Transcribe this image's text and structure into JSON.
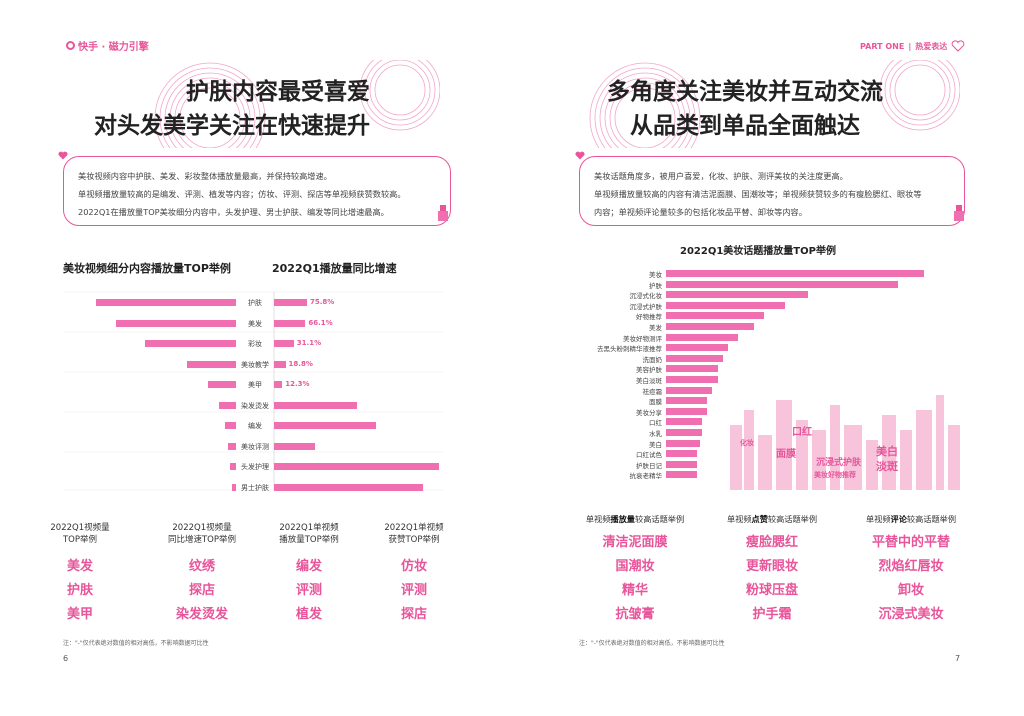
{
  "header": {
    "brand_left": "快手 · 磁力引擎",
    "part": "PART ONE",
    "section": "热爱表达"
  },
  "left": {
    "title_line1": "护肤内容最受喜爱",
    "title_line2": "对头发美学关注在快速提升",
    "card_lines": [
      "美妆视频内容中护肤、美发、彩妆整体播放量最高，并保持较高增速。",
      "单视频播放量较高的是编发、评测、植发等内容；仿妆、评测、探店等单视频获赞数较高。",
      "2022Q1在播放量TOP美妆细分内容中，头发护理、男士护肤、编发等同比增速最高。"
    ],
    "chart1_title": "美妆视频细分内容播放量TOP举例",
    "chart2_title": "2022Q1播放量同比增速",
    "categories": [
      "护肤",
      "美发",
      "彩妆",
      "美妆教学",
      "美甲",
      "染发烫发",
      "编发",
      "美妆评测",
      "头发护理",
      "男士护肤"
    ],
    "left_bars": [
      1.0,
      0.86,
      0.65,
      0.35,
      0.2,
      0.12,
      0.08,
      0.06,
      0.04,
      0.03
    ],
    "growth": [
      {
        "pct": "75.8%",
        "v": 0.2
      },
      {
        "pct": "66.1%",
        "v": 0.19
      },
      {
        "pct": "31.1%",
        "v": 0.12
      },
      {
        "pct": "18.8%",
        "v": 0.07
      },
      {
        "pct": "12.3%",
        "v": 0.05
      },
      {
        "pct": "",
        "v": 0.5
      },
      {
        "pct": "",
        "v": 0.62
      },
      {
        "pct": "",
        "v": 0.25
      },
      {
        "pct": "",
        "v": 1.0
      },
      {
        "pct": "",
        "v": 0.9
      }
    ],
    "tag_heads": [
      "2022Q1视频量\nTOP举例",
      "2022Q1视频量\n同比增速TOP举例",
      "2022Q1单视频\n播放量TOP举例",
      "2022Q1单视频\n获赞TOP举例"
    ],
    "tag_cols": [
      [
        "美发",
        "护肤",
        "美甲"
      ],
      [
        "纹绣",
        "探店",
        "染发烫发"
      ],
      [
        "编发",
        "评测",
        "植发"
      ],
      [
        "仿妆",
        "评测",
        "探店"
      ]
    ],
    "note": "注：\"-\"仅代表绝对数值的相对高低，不影响数据可比性",
    "page": "6"
  },
  "right": {
    "title_line1": "多角度关注美妆并互动交流",
    "title_line2": "从品类到单品全面触达",
    "card_lines": [
      "美妆话题角度多，被用户喜爱，化妆、护肤、测评美妆的关注度更高。",
      "单视频播放量较高的内容有清洁泥面膜、国潮妆等；单视频获赞较多的有瘦脸腮红、眼妆等",
      "内容；单视频评论量较多的包括化妆品平替、卸妆等内容。"
    ],
    "chart_title": "2022Q1美妆话题播放量TOP举例",
    "topics": [
      "美妆",
      "护肤",
      "沉浸式化妆",
      "沉浸式护肤",
      "好物推荐",
      "美发",
      "美妆好物测评",
      "去黑头粉刺精华液推荐",
      "洗面奶",
      "美容护肤",
      "美白淡斑",
      "祛痘霜",
      "面膜",
      "美妆分享",
      "口红",
      "水乳",
      "美白",
      "口红试色",
      "护肤日记",
      "抗衰老精华"
    ],
    "topic_vals": [
      1.0,
      0.9,
      0.55,
      0.46,
      0.38,
      0.34,
      0.28,
      0.24,
      0.22,
      0.2,
      0.2,
      0.18,
      0.16,
      0.16,
      0.14,
      0.14,
      0.13,
      0.12,
      0.12,
      0.12
    ],
    "cloud_words": [
      "面膜",
      "口红",
      "美白",
      "淡斑",
      "沉浸式护肤",
      "美妆好物推荐",
      "化妆"
    ],
    "col_heads": [
      {
        "pre": "单视频",
        "bold": "播放量",
        "post": "较高话题举例"
      },
      {
        "pre": "单视频",
        "bold": "点赞",
        "post": "较高话题举例"
      },
      {
        "pre": "单视频",
        "bold": "评论",
        "post": "较高话题举例"
      }
    ],
    "cols": [
      [
        "清洁泥面膜",
        "国潮妆",
        "精华",
        "抗皱膏"
      ],
      [
        "瘦脸腮红",
        "更新眼妆",
        "粉球压盘",
        "护手霜"
      ],
      [
        "平替中的平替",
        "烈焰红唇妆",
        "卸妆",
        "沉浸式美妆"
      ]
    ],
    "note": "注：\"-\"仅代表绝对数值的相对高低，不影响数据可比性",
    "page": "7"
  },
  "colors": {
    "accent": "#e8559a",
    "bar": "#f06fb0"
  }
}
